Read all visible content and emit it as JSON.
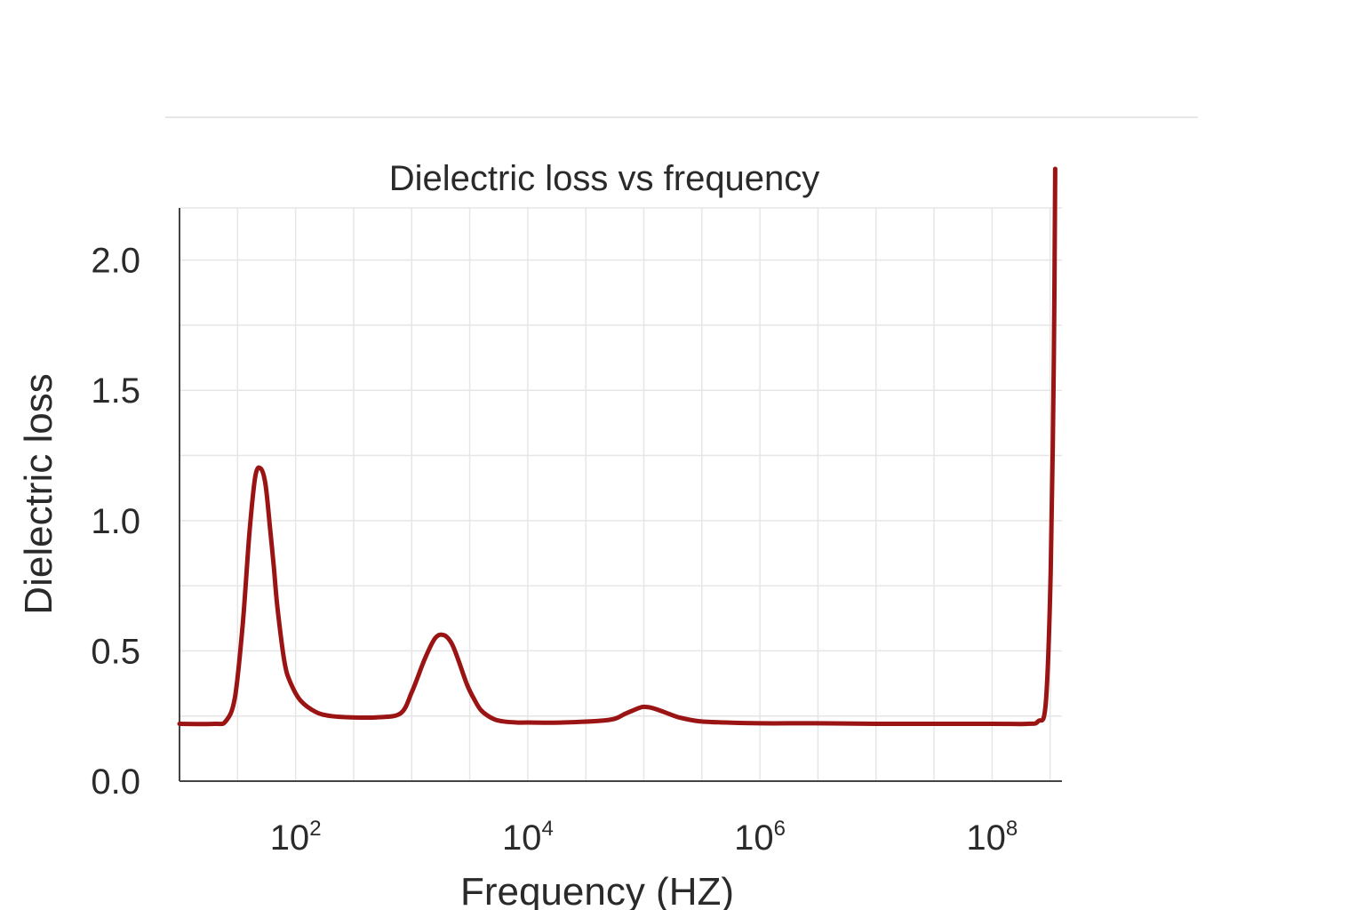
{
  "chart_data": {
    "type": "line",
    "title": "Dielectric loss vs frequency",
    "xlabel": "Frequency (HZ)",
    "ylabel": "Dielectric loss",
    "x_scale": "log",
    "xlim": [
      10,
      400000000
    ],
    "ylim": [
      0,
      2.2
    ],
    "xticks": [
      {
        "value": 100,
        "base": "10",
        "exp": "2"
      },
      {
        "value": 10000,
        "base": "10",
        "exp": "4"
      },
      {
        "value": 1000000,
        "base": "10",
        "exp": "6"
      },
      {
        "value": 100000000,
        "base": "10",
        "exp": "8"
      }
    ],
    "yticks": [
      {
        "value": 0.0,
        "label": "0.0"
      },
      {
        "value": 0.5,
        "label": "0.5"
      },
      {
        "value": 1.0,
        "label": "1.0"
      },
      {
        "value": 1.5,
        "label": "1.5"
      },
      {
        "value": 2.0,
        "label": "2.0"
      }
    ],
    "grid": true,
    "line_color": "#9b1414",
    "grid_color": "#e6e6e6",
    "axis_color": "#444444",
    "series": [
      {
        "x": [
          10,
          20,
          25,
          30,
          35,
          40,
          45,
          50,
          55,
          60,
          65,
          70,
          80,
          90,
          110,
          150,
          200,
          300,
          500,
          800,
          1000,
          1300,
          1600,
          1900,
          2200,
          2500,
          3000,
          3500,
          4000,
          5000,
          6000,
          8000,
          10000,
          20000,
          50000,
          70000,
          90000,
          100000,
          120000,
          150000,
          200000,
          300000,
          500000,
          1000000,
          3000000,
          10000000,
          100000000,
          200000000,
          250000000,
          290000000,
          320000000,
          340000000,
          350000000
        ],
        "y": [
          0.22,
          0.22,
          0.23,
          0.32,
          0.6,
          0.95,
          1.17,
          1.2,
          1.14,
          0.98,
          0.82,
          0.66,
          0.46,
          0.38,
          0.31,
          0.265,
          0.25,
          0.245,
          0.245,
          0.26,
          0.34,
          0.47,
          0.55,
          0.56,
          0.53,
          0.47,
          0.37,
          0.31,
          0.27,
          0.24,
          0.23,
          0.225,
          0.225,
          0.225,
          0.235,
          0.26,
          0.28,
          0.285,
          0.28,
          0.265,
          0.245,
          0.23,
          0.225,
          0.222,
          0.222,
          0.22,
          0.22,
          0.22,
          0.23,
          0.3,
          0.8,
          1.6,
          2.35
        ]
      }
    ]
  }
}
